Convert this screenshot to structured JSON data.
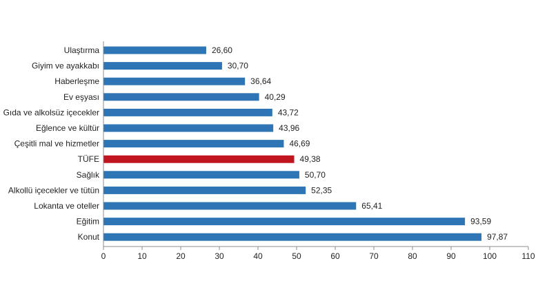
{
  "chart_data": {
    "type": "bar",
    "orientation": "horizontal",
    "categories": [
      "Ulaştırma",
      "Giyim ve ayakkabı",
      "Haberleşme",
      "Ev eşyası",
      "Gıda ve alkolsüz içecekler",
      "Eğlence ve kültür",
      "Çeşitli mal ve hizmetler",
      "TÜFE",
      "Sağlık",
      "Alkollü içecekler ve tütün",
      "Lokanta ve oteller",
      "Eğitim",
      "Konut"
    ],
    "values": [
      26.6,
      30.7,
      36.64,
      40.29,
      43.72,
      43.96,
      46.69,
      49.38,
      50.7,
      52.35,
      65.41,
      93.59,
      97.87
    ],
    "value_labels": [
      "26,60",
      "30,70",
      "36,64",
      "40,29",
      "43,72",
      "43,96",
      "46,69",
      "49,38",
      "50,70",
      "52,35",
      "65,41",
      "93,59",
      "97,87"
    ],
    "xlim": [
      0,
      110
    ],
    "xticks": [
      0,
      10,
      20,
      30,
      40,
      50,
      60,
      70,
      80,
      90,
      100,
      110
    ],
    "title": "",
    "xlabel": "",
    "ylabel": "",
    "grid": false,
    "legend": "none",
    "colors": {
      "bar": "#2e75b6",
      "highlight": "#c0141e",
      "axis": "#8c8c8c",
      "text": "#222222"
    },
    "highlight_category": "TÜFE"
  }
}
